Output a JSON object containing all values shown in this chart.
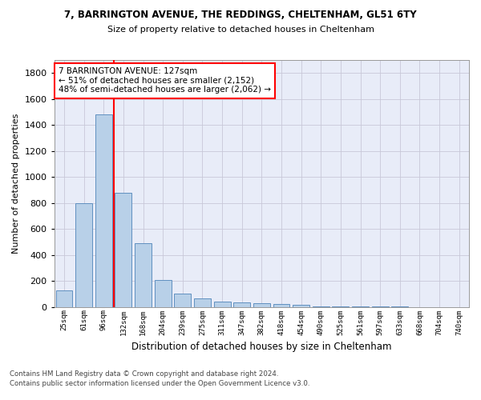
{
  "title1": "7, BARRINGTON AVENUE, THE REDDINGS, CHELTENHAM, GL51 6TY",
  "title2": "Size of property relative to detached houses in Cheltenham",
  "xlabel": "Distribution of detached houses by size in Cheltenham",
  "ylabel": "Number of detached properties",
  "bar_labels": [
    "25sqm",
    "61sqm",
    "96sqm",
    "132sqm",
    "168sqm",
    "204sqm",
    "239sqm",
    "275sqm",
    "311sqm",
    "347sqm",
    "382sqm",
    "418sqm",
    "454sqm",
    "490sqm",
    "525sqm",
    "561sqm",
    "597sqm",
    "633sqm",
    "668sqm",
    "704sqm",
    "740sqm"
  ],
  "bar_values": [
    125,
    800,
    1480,
    880,
    490,
    205,
    105,
    65,
    42,
    35,
    28,
    22,
    15,
    5,
    3,
    2,
    1,
    1,
    0,
    0,
    0
  ],
  "bar_color": "#b8d0e8",
  "bar_edge_color": "#6090c0",
  "grid_color": "#c8c8d8",
  "bg_color": "#e8ecf8",
  "vline_color": "red",
  "annotation_title": "7 BARRINGTON AVENUE: 127sqm",
  "annotation_line1": "← 51% of detached houses are smaller (2,152)",
  "annotation_line2": "48% of semi-detached houses are larger (2,062) →",
  "ylim": [
    0,
    1900
  ],
  "yticks": [
    0,
    200,
    400,
    600,
    800,
    1000,
    1200,
    1400,
    1600,
    1800
  ],
  "footnote1": "Contains HM Land Registry data © Crown copyright and database right 2024.",
  "footnote2": "Contains public sector information licensed under the Open Government Licence v3.0."
}
